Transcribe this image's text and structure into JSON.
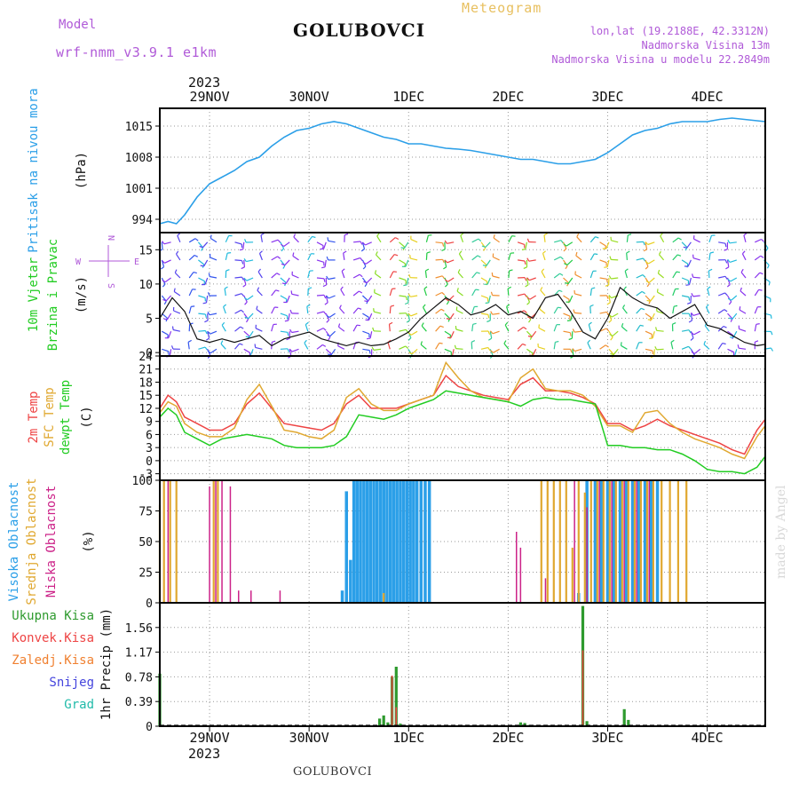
{
  "header": {
    "model_label": "Model",
    "model_name": "wrf-nmm_v3.9.1 e1km",
    "station": "GOLUBOVCI",
    "meteogram_label": "Meteogram",
    "lonlat": "lon,lat (19.2188E, 42.3312N)",
    "elevation": "Nadmorska Visina 13m",
    "model_elevation": "Nadmorska Visina u modelu 22.2849m"
  },
  "footer": {
    "station": "GOLUBOVCI",
    "watermark": "made by Angel"
  },
  "time_axis": {
    "year": "2023",
    "tick_labels": [
      "29NOV",
      "30NOV",
      "1DEC",
      "2DEC",
      "3DEC",
      "4DEC"
    ],
    "tick_hours": [
      12,
      36,
      60,
      84,
      108,
      132
    ],
    "total_hours": 146
  },
  "colors": {
    "pressure": "#2b9fe8",
    "wind_label": "#22cc22",
    "t2m": "#ee4444",
    "sfc": "#e0a830",
    "dew": "#22cc22",
    "high_cloud": "#2b9fe8",
    "mid_cloud": "#e0a830",
    "low_cloud": "#cc2288",
    "total_precip": "#2e9a2e",
    "conv_precip": "#ee4444",
    "freezing": "#f08030",
    "snow": "#4444dd",
    "hail": "#22bbaa",
    "axis_purple": "#b05ad8"
  },
  "chart_data": [
    {
      "type": "line",
      "panel": "pressure",
      "ylabel_lines": [
        "Pritisak na nivou mora",
        "(hPa)"
      ],
      "ylim": [
        991,
        1019
      ],
      "yticks": [
        994,
        1001,
        1008,
        1015
      ],
      "x": [
        0,
        2,
        4,
        6,
        9,
        12,
        15,
        18,
        21,
        24,
        27,
        30,
        33,
        36,
        39,
        42,
        45,
        48,
        51,
        54,
        57,
        60,
        63,
        66,
        69,
        72,
        75,
        78,
        81,
        84,
        87,
        90,
        93,
        96,
        99,
        102,
        105,
        108,
        111,
        114,
        117,
        120,
        123,
        126,
        129,
        132,
        135,
        138,
        141,
        144,
        146
      ],
      "series": [
        {
          "values": [
            993.0,
            993.5,
            993.0,
            995.0,
            999.0,
            1002.0,
            1003.5,
            1005.0,
            1007.0,
            1008.0,
            1010.5,
            1012.5,
            1014.0,
            1014.5,
            1015.5,
            1016.0,
            1015.5,
            1014.5,
            1013.5,
            1012.5,
            1012.0,
            1011.0,
            1011.0,
            1010.5,
            1010.0,
            1009.8,
            1009.5,
            1009.0,
            1008.5,
            1008.0,
            1007.5,
            1007.5,
            1007.0,
            1006.5,
            1006.5,
            1007.0,
            1007.5,
            1009.0,
            1011.0,
            1013.0,
            1014.0,
            1014.5,
            1015.5,
            1016.0,
            1016.0,
            1016.0,
            1016.5,
            1016.8,
            1016.5,
            1016.2,
            1016.0
          ]
        }
      ]
    },
    {
      "type": "line",
      "panel": "wind",
      "ylabel_lines": [
        "10m Vjetar",
        "Brzina i Pravac",
        "(m/s)"
      ],
      "compass_labels": [
        "N",
        "W",
        "E",
        "S"
      ],
      "ylim": [
        -0.5,
        17.5
      ],
      "yticks": [
        0,
        5,
        10,
        15
      ],
      "x": [
        0,
        3,
        6,
        9,
        12,
        15,
        18,
        21,
        24,
        27,
        30,
        33,
        36,
        39,
        42,
        45,
        48,
        51,
        54,
        57,
        60,
        63,
        66,
        69,
        72,
        75,
        78,
        81,
        84,
        87,
        90,
        93,
        96,
        99,
        102,
        105,
        108,
        111,
        114,
        117,
        120,
        123,
        126,
        129,
        132,
        135,
        138,
        141,
        144,
        146
      ],
      "series": [
        {
          "values": [
            5.0,
            8.0,
            6.0,
            2.0,
            1.5,
            2.0,
            1.5,
            2.0,
            2.5,
            1.0,
            2.0,
            2.5,
            3.0,
            2.0,
            1.5,
            1.0,
            1.5,
            1.0,
            1.2,
            2.0,
            3.0,
            5.0,
            6.5,
            8.0,
            7.0,
            5.5,
            6.0,
            7.0,
            5.5,
            6.0,
            5.0,
            8.0,
            8.5,
            6.0,
            3.0,
            2.0,
            5.0,
            9.5,
            8.0,
            7.0,
            6.5,
            5.0,
            6.0,
            7.0,
            4.0,
            3.5,
            2.5,
            1.5,
            1.0,
            1.2
          ]
        }
      ]
    },
    {
      "type": "line",
      "panel": "temperature",
      "ylabel_lines": [
        "2m Temp",
        "SFC Temp",
        "dewpt Temp",
        "(C)"
      ],
      "ylim": [
        -4.5,
        24
      ],
      "yticks": [
        -3,
        0,
        3,
        6,
        9,
        12,
        15,
        18,
        21,
        24
      ],
      "x": [
        0,
        2,
        4,
        6,
        9,
        12,
        15,
        18,
        21,
        24,
        27,
        30,
        33,
        36,
        39,
        42,
        45,
        48,
        51,
        54,
        57,
        60,
        63,
        66,
        69,
        72,
        75,
        78,
        81,
        84,
        87,
        90,
        93,
        96,
        99,
        102,
        105,
        108,
        111,
        114,
        117,
        120,
        123,
        126,
        129,
        132,
        135,
        138,
        141,
        144,
        146
      ],
      "series": [
        {
          "name": "2m Temp",
          "values": [
            12.0,
            15.0,
            13.5,
            10.0,
            8.5,
            7.0,
            7.0,
            8.5,
            13.0,
            15.5,
            12.0,
            8.5,
            8.0,
            7.5,
            7.0,
            8.5,
            13.0,
            15.0,
            12.0,
            12.0,
            12.0,
            13.0,
            14.0,
            15.0,
            19.5,
            17.0,
            16.0,
            15.0,
            14.5,
            14.0,
            17.5,
            19.0,
            16.0,
            16.0,
            15.5,
            14.5,
            13.0,
            8.5,
            8.5,
            7.0,
            8.0,
            9.5,
            8.0,
            7.0,
            6.0,
            5.0,
            4.0,
            2.5,
            1.5,
            7.0,
            9.5
          ]
        },
        {
          "name": "SFC Temp",
          "values": [
            11.0,
            13.5,
            12.5,
            8.5,
            6.5,
            5.5,
            5.5,
            7.5,
            14.0,
            17.5,
            12.5,
            7.0,
            6.5,
            5.5,
            5.0,
            7.0,
            14.5,
            16.5,
            13.0,
            11.5,
            11.5,
            13.0,
            14.0,
            15.0,
            22.5,
            19.0,
            16.0,
            14.5,
            14.0,
            13.5,
            19.0,
            21.0,
            16.5,
            16.0,
            16.0,
            15.0,
            12.5,
            8.0,
            8.0,
            6.5,
            11.0,
            11.5,
            8.5,
            6.5,
            5.0,
            4.0,
            3.0,
            1.5,
            0.5,
            5.5,
            8.0
          ]
        },
        {
          "name": "dewpt Temp",
          "values": [
            10.0,
            12.0,
            10.5,
            6.5,
            5.0,
            3.5,
            5.0,
            5.5,
            6.0,
            5.5,
            5.0,
            3.5,
            3.0,
            3.0,
            3.0,
            3.5,
            5.5,
            10.5,
            10.0,
            9.5,
            10.5,
            12.0,
            13.0,
            14.0,
            16.0,
            15.5,
            15.0,
            14.5,
            14.0,
            13.5,
            12.5,
            14.0,
            14.5,
            14.0,
            14.0,
            13.5,
            13.0,
            3.5,
            3.5,
            3.0,
            3.0,
            2.5,
            2.5,
            1.5,
            0.0,
            -2.0,
            -2.5,
            -2.5,
            -3.0,
            -1.5,
            1.0
          ]
        }
      ]
    },
    {
      "type": "bar",
      "panel": "clouds",
      "ylabel_lines": [
        "Visoka Oblacnost",
        "Srednja Oblacnost",
        "Niska Oblacnost",
        "(%)"
      ],
      "ylim": [
        0,
        100
      ],
      "yticks": [
        0,
        25,
        50,
        75,
        100
      ],
      "series": [
        {
          "name": "Visoka Oblacnost",
          "x": [
            44,
            45,
            46,
            46.8,
            47.6,
            48.4,
            49.2,
            50,
            50.8,
            51.6,
            52.4,
            53.2,
            54,
            54.8,
            55.6,
            56.4,
            57.2,
            58,
            58.8,
            59.6,
            60.4,
            61.2,
            62,
            63,
            64,
            65,
            101,
            103,
            105,
            106.5,
            108,
            109.5,
            111,
            112.5,
            114,
            115.5,
            117,
            118.5,
            120
          ],
          "values": [
            10,
            91,
            35,
            100,
            100,
            100,
            100,
            100,
            100,
            100,
            100,
            100,
            100,
            100,
            100,
            100,
            100,
            100,
            100,
            100,
            100,
            100,
            100,
            100,
            100,
            100,
            8,
            100,
            100,
            100,
            100,
            100,
            100,
            100,
            100,
            100,
            100,
            100,
            100
          ]
        },
        {
          "name": "Srednja Oblacnost",
          "x": [
            0,
            1,
            2.5,
            4,
            13,
            14,
            54,
            92,
            93.5,
            95,
            96.5,
            98,
            99.5,
            101,
            102.5,
            104,
            105.5,
            107,
            108.5,
            110,
            111.5,
            113,
            114.5,
            116,
            117.5,
            119,
            121,
            123,
            125,
            127
          ],
          "values": [
            80,
            100,
            100,
            100,
            100,
            100,
            8,
            100,
            100,
            100,
            100,
            100,
            45,
            100,
            90,
            100,
            100,
            100,
            100,
            100,
            100,
            100,
            100,
            100,
            100,
            100,
            100,
            100,
            100,
            100
          ]
        },
        {
          "name": "Niska Oblacnost",
          "x": [
            2,
            12,
            13.5,
            15,
            17,
            19,
            22,
            29,
            86,
            87,
            93,
            100,
            103,
            106,
            109,
            112,
            115,
            118
          ],
          "values": [
            100,
            95,
            100,
            100,
            95,
            10,
            10,
            10,
            58,
            45,
            20,
            100,
            78,
            100,
            100,
            100,
            100,
            100
          ]
        }
      ]
    },
    {
      "type": "bar",
      "panel": "precipitation",
      "ylabel_lines": [
        "1hr Precip (mm)"
      ],
      "legend": [
        "Ukupna Kisa",
        "Konvek.Kisa",
        "Zaledj.Kisa",
        "Snijeg",
        "Grad"
      ],
      "ylim": [
        0,
        1.95
      ],
      "yticks": [
        0,
        0.39,
        0.78,
        1.17,
        1.56
      ],
      "series": [
        {
          "name": "Ukupna Kisa",
          "x": [
            0,
            52,
            53,
            54,
            55,
            56,
            57,
            58,
            86,
            87,
            88,
            89,
            102,
            103,
            112,
            113
          ],
          "values": [
            0.83,
            0.02,
            0.12,
            0.17,
            0.06,
            0.78,
            0.94,
            0.04,
            0.02,
            0.06,
            0.05,
            0.02,
            1.9,
            0.08,
            0.27,
            0.1
          ]
        },
        {
          "name": "Konvek.Kisa",
          "x": [
            0,
            56,
            57,
            102
          ],
          "values": [
            0.79,
            0.8,
            0.3,
            1.2
          ]
        }
      ]
    }
  ]
}
